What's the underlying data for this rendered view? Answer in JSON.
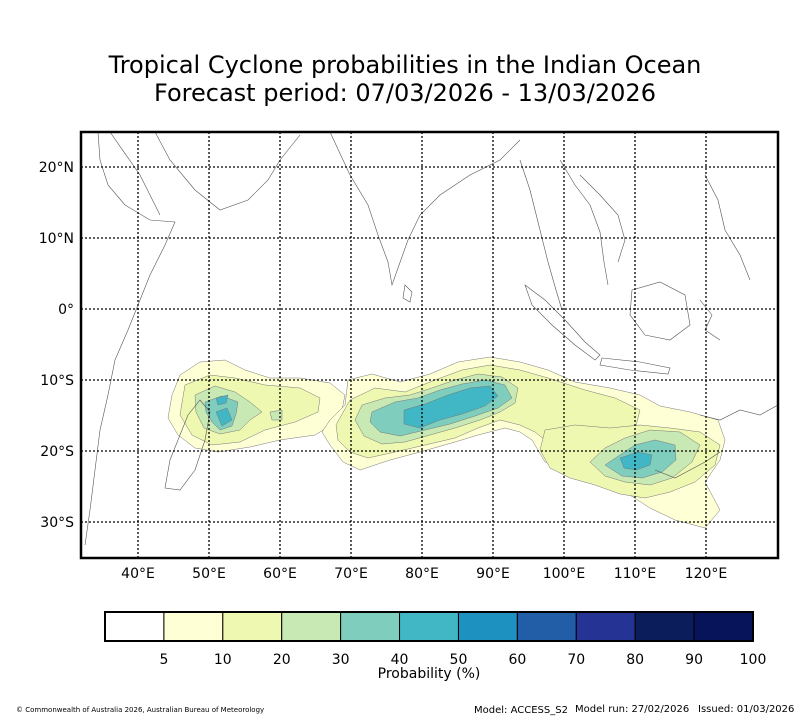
{
  "title": {
    "line1": "Tropical Cyclone probabilities in the Indian Ocean",
    "line2": "Forecast period: 07/03/2026 - 13/03/2026"
  },
  "map": {
    "lat_labels": [
      "20°N",
      "10°N",
      "0°",
      "10°S",
      "20°S",
      "30°S"
    ],
    "lon_labels": [
      "40°E",
      "50°E",
      "60°E",
      "70°E",
      "80°E",
      "90°E",
      "100°E",
      "110°E",
      "120°E"
    ]
  },
  "colorbar": {
    "label": "Probability (%)",
    "ticks": [
      "5",
      "10",
      "20",
      "30",
      "40",
      "50",
      "60",
      "70",
      "80",
      "90",
      "100"
    ],
    "colors": [
      "#ffffff",
      "#ffffd6",
      "#eef8b0",
      "#c8e8b4",
      "#7fcebd",
      "#41b6c4",
      "#1d91c0",
      "#225ea8",
      "#253494",
      "#0c1d5c",
      "#081459"
    ]
  },
  "footer": {
    "copyright": "© Commonwealth of Australia 2026, Australian Bureau of Meteorology",
    "model": "Model: ACCESS_S2",
    "model_run": "Model run: 27/02/2026",
    "issued": "Issued: 01/03/2026"
  }
}
